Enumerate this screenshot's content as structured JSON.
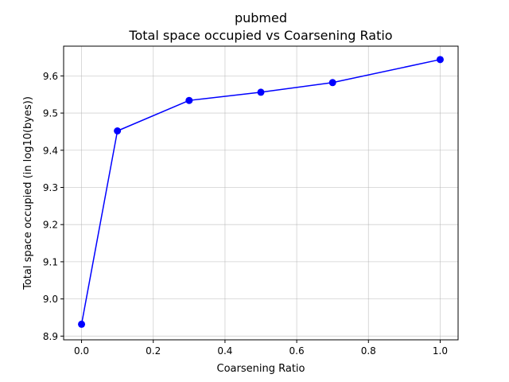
{
  "chart_data": {
    "type": "line",
    "title": "pubmed",
    "subtitle": "Total space occupied vs Coarsening Ratio",
    "xlabel": "Coarsening Ratio",
    "ylabel": "Total space occupied (in log10(byes))",
    "xlim": [
      -0.05,
      1.05
    ],
    "ylim": [
      8.89,
      9.68
    ],
    "xticks": [
      0.0,
      0.2,
      0.4,
      0.6,
      0.8,
      1.0
    ],
    "xtick_labels": [
      "0.0",
      "0.2",
      "0.4",
      "0.6",
      "0.8",
      "1.0"
    ],
    "yticks": [
      8.9,
      9.0,
      9.1,
      9.2,
      9.3,
      9.4,
      9.5,
      9.6
    ],
    "ytick_labels": [
      "8.9",
      "9.0",
      "9.1",
      "9.2",
      "9.3",
      "9.4",
      "9.5",
      "9.6"
    ],
    "grid": true,
    "legend": false,
    "series": [
      {
        "color": "#0000ff",
        "marker": "circle",
        "x": [
          0.0,
          0.1,
          0.3,
          0.5,
          0.7,
          1.0
        ],
        "y": [
          8.932,
          9.452,
          9.534,
          9.556,
          9.582,
          9.644
        ]
      }
    ]
  }
}
